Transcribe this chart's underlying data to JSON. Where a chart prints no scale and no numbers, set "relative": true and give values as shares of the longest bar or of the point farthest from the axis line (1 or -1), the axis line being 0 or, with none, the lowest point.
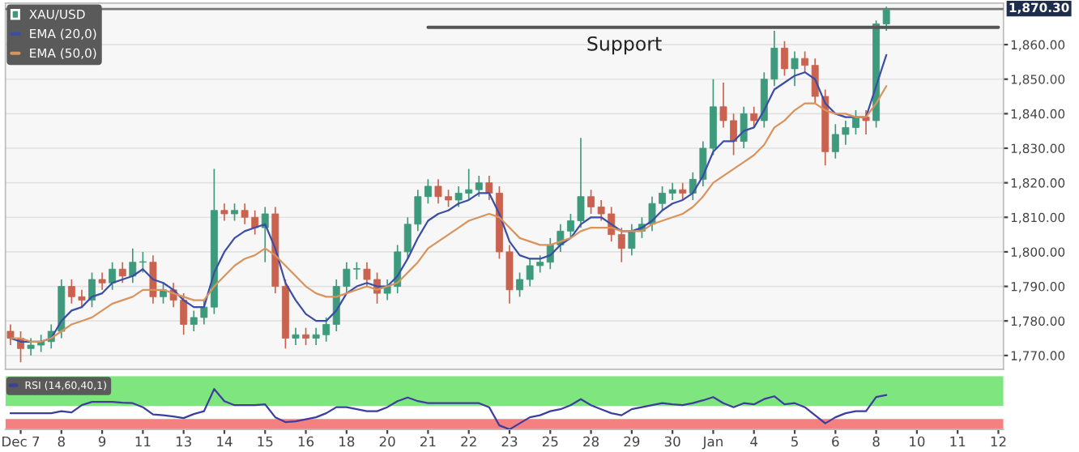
{
  "chart_data": [
    {
      "type": "candlestick",
      "legend": "top left",
      "grid": "y",
      "tick_labels": "y",
      "categories": [
        null,
        null,
        null,
        null,
        null,
        null,
        null,
        null,
        null,
        null,
        null,
        null,
        null,
        null,
        null,
        null,
        null,
        null,
        null,
        null,
        null,
        null,
        null,
        null,
        null,
        null,
        null,
        null,
        null,
        null,
        null,
        null,
        null,
        null,
        null,
        null,
        null,
        null,
        null,
        null,
        null,
        null,
        null,
        null,
        null,
        null,
        null,
        null,
        null,
        null,
        null,
        null,
        null,
        null,
        null,
        null,
        null,
        null,
        null,
        null,
        null,
        null,
        null,
        null,
        null,
        null,
        null,
        null,
        null,
        null,
        null,
        null,
        null,
        null,
        null,
        null,
        null,
        null,
        null,
        null,
        null,
        null,
        null,
        null,
        null,
        null,
        null,
        null,
        null,
        null,
        null,
        null,
        null,
        null,
        null,
        null,
        null,
        null
      ],
      "ylim": [
        1766,
        1872
      ],
      "yticks": [
        {
          "value": 1770,
          "label": "1,770.00"
        },
        {
          "value": 1780,
          "label": "1,780.00"
        },
        {
          "value": 1790,
          "label": "1,790.00"
        },
        {
          "value": 1800,
          "label": "1,800.00"
        },
        {
          "value": 1810,
          "label": "1,810.00"
        },
        {
          "value": 1820,
          "label": "1,820.00"
        },
        {
          "value": 1830,
          "label": "1,830.00"
        },
        {
          "value": 1840,
          "label": "1,840.00"
        },
        {
          "value": 1850,
          "label": "1,850.00"
        },
        {
          "value": 1860,
          "label": "1,860.00"
        }
      ],
      "series": [
        {
          "name": "XAU/USD",
          "type": "candlestick",
          "colors": [
            "#c9634f",
            "#c9634f",
            "#3d9a7c",
            "#3d9a7c",
            "#3d9a7c",
            "#3d9a7c",
            "#c9634f",
            "#c9634f",
            "#3d9a7c",
            "#c9634f",
            "#3d9a7c",
            "#c9634f",
            "#3d9a7c",
            "#3d9a7c",
            "#c9634f",
            "#3d9a7c",
            "#c9634f",
            "#c9634f",
            "#3d9a7c",
            "#3d9a7c",
            "#3d9a7c",
            "#c9634f",
            "#3d9a7c",
            "#c9634f",
            "#c9634f",
            "#3d9a7c",
            "#c9634f",
            "#c9634f",
            "#3d9a7c",
            "#c9634f",
            "#3d9a7c",
            "#3d9a7c",
            "#3d9a7c",
            "#3d9a7c",
            "#3d9a7c",
            "#c9634f",
            "#c9634f",
            "#3d9a7c",
            "#3d9a7c",
            "#3d9a7c",
            "#3d9a7c",
            "#3d9a7c",
            "#c9634f",
            "#c9634f",
            "#3d9a7c",
            "#3d9a7c",
            "#3d9a7c",
            "#c9634f",
            "#c9634f",
            "#c9634f",
            "#3d9a7c",
            "#3d9a7c",
            "#3d9a7c",
            "#3d9a7c",
            "#3d9a7c",
            "#3d9a7c",
            "#3d9a7c",
            "#c9634f",
            "#c9634f",
            "#c9634f",
            "#c9634f",
            "#3d9a7c",
            "#3d9a7c",
            "#3d9a7c",
            "#3d9a7c",
            "#3d9a7c",
            "#c9634f",
            "#3d9a7c",
            "#3d9a7c",
            "#3d9a7c",
            "#c9634f",
            "#c9634f",
            "#3d9a7c",
            "#c9634f",
            "#3d9a7c",
            "#3d9a7c",
            "#c9634f",
            "#3d9a7c",
            "#c9634f",
            "#c9634f",
            "#c9634f",
            "#3d9a7c",
            "#3d9a7c",
            "#3d9a7c",
            "#c9634f",
            "#3d9a7c",
            "#3d9a7c",
            null,
            null,
            null,
            null,
            null,
            null,
            null,
            null,
            null,
            null,
            null
          ],
          "ohlc": [
            [
              1777,
              1779,
              1773,
              1775
            ],
            [
              1775,
              1777,
              1768,
              1772
            ],
            [
              1772,
              1775,
              1770,
              1773
            ],
            [
              1773,
              1776,
              1771,
              1774
            ],
            [
              1774,
              1779,
              1772,
              1777
            ],
            [
              1777,
              1792,
              1775,
              1790
            ],
            [
              1790,
              1792,
              1785,
              1787
            ],
            [
              1787,
              1789,
              1784,
              1786
            ],
            [
              1786,
              1794,
              1784,
              1792
            ],
            [
              1792,
              1794,
              1789,
              1791
            ],
            [
              1791,
              1797,
              1789,
              1795
            ],
            [
              1795,
              1797,
              1791,
              1793
            ],
            [
              1793,
              1801,
              1791,
              1797
            ],
            [
              1797,
              1800,
              1794,
              1797
            ],
            [
              1797,
              1799,
              1785,
              1787
            ],
            [
              1787,
              1791,
              1785,
              1789
            ],
            [
              1789,
              1791,
              1784,
              1786
            ],
            [
              1786,
              1788,
              1776,
              1779
            ],
            [
              1779,
              1783,
              1777,
              1781
            ],
            [
              1781,
              1786,
              1779,
              1784
            ],
            [
              1784,
              1824,
              1782,
              1812
            ],
            [
              1812,
              1814,
              1809,
              1811
            ],
            [
              1811,
              1814,
              1809,
              1812
            ],
            [
              1812,
              1814,
              1808,
              1810
            ],
            [
              1810,
              1812,
              1805,
              1807
            ],
            [
              1807,
              1813,
              1797,
              1811
            ],
            [
              1811,
              1813,
              1788,
              1790
            ],
            [
              1790,
              1792,
              1772,
              1775
            ],
            [
              1775,
              1778,
              1773,
              1776
            ],
            [
              1776,
              1778,
              1773,
              1775
            ],
            [
              1775,
              1778,
              1773,
              1776
            ],
            [
              1776,
              1781,
              1774,
              1779
            ],
            [
              1779,
              1792,
              1777,
              1790
            ],
            [
              1790,
              1797,
              1788,
              1795
            ],
            [
              1795,
              1797,
              1792,
              1795
            ],
            [
              1795,
              1797,
              1790,
              1792
            ],
            [
              1792,
              1794,
              1785,
              1788
            ],
            [
              1788,
              1792,
              1786,
              1790
            ],
            [
              1790,
              1802,
              1788,
              1800
            ],
            [
              1800,
              1810,
              1798,
              1808
            ],
            [
              1808,
              1818,
              1806,
              1816
            ],
            [
              1816,
              1821,
              1814,
              1819
            ],
            [
              1819,
              1821,
              1814,
              1816
            ],
            [
              1816,
              1818,
              1813,
              1815
            ],
            [
              1815,
              1819,
              1813,
              1817
            ],
            [
              1817,
              1824,
              1815,
              1818
            ],
            [
              1818,
              1822,
              1816,
              1820
            ],
            [
              1820,
              1822,
              1815,
              1817
            ],
            [
              1817,
              1819,
              1798,
              1800
            ],
            [
              1800,
              1802,
              1785,
              1789
            ],
            [
              1789,
              1794,
              1787,
              1792
            ],
            [
              1792,
              1798,
              1790,
              1796
            ],
            [
              1796,
              1799,
              1794,
              1797
            ],
            [
              1797,
              1804,
              1795,
              1802
            ],
            [
              1802,
              1808,
              1800,
              1806
            ],
            [
              1806,
              1811,
              1804,
              1809
            ],
            [
              1809,
              1833,
              1807,
              1816
            ],
            [
              1816,
              1818,
              1811,
              1813
            ],
            [
              1813,
              1815,
              1809,
              1811
            ],
            [
              1811,
              1813,
              1803,
              1805
            ],
            [
              1805,
              1807,
              1797,
              1801
            ],
            [
              1801,
              1808,
              1799,
              1806
            ],
            [
              1806,
              1810,
              1804,
              1808
            ],
            [
              1808,
              1816,
              1806,
              1814
            ],
            [
              1814,
              1819,
              1812,
              1817
            ],
            [
              1817,
              1820,
              1815,
              1818
            ],
            [
              1818,
              1820,
              1815,
              1817
            ],
            [
              1817,
              1823,
              1815,
              1821
            ],
            [
              1821,
              1832,
              1819,
              1830
            ],
            [
              1830,
              1850,
              1828,
              1842
            ],
            [
              1842,
              1849,
              1836,
              1838
            ],
            [
              1838,
              1840,
              1828,
              1832
            ],
            [
              1832,
              1842,
              1830,
              1840
            ],
            [
              1840,
              1842,
              1836,
              1838
            ],
            [
              1838,
              1852,
              1836,
              1850
            ],
            [
              1850,
              1864,
              1848,
              1859
            ],
            [
              1859,
              1861,
              1851,
              1853
            ],
            [
              1853,
              1858,
              1848,
              1856
            ],
            [
              1856,
              1858,
              1852,
              1854
            ],
            [
              1854,
              1856,
              1843,
              1845
            ],
            [
              1845,
              1847,
              1825,
              1829
            ],
            [
              1829,
              1837,
              1827,
              1834
            ],
            [
              1834,
              1838,
              1831,
              1836
            ],
            [
              1836,
              1841,
              1834,
              1839
            ],
            [
              1839,
              1841,
              1834,
              1838
            ],
            [
              1838,
              1867,
              1836,
              1866
            ],
            [
              1866,
              1871,
              1864,
              1870
            ],
            null,
            null,
            null,
            null,
            null,
            null,
            null,
            null,
            null,
            null,
            null
          ]
        },
        {
          "name": "EMA (20,0)",
          "type": "line",
          "color": "#3b4ea6",
          "values": [
            1775,
            1774,
            1774,
            1774,
            1775,
            1780,
            1783,
            1784,
            1787,
            1788,
            1791,
            1792,
            1793,
            1795,
            1792,
            1791,
            1789,
            1786,
            1784,
            1784,
            1794,
            1800,
            1804,
            1806,
            1807,
            1808,
            1801,
            1791,
            1786,
            1782,
            1780,
            1780,
            1783,
            1788,
            1790,
            1791,
            1790,
            1790,
            1793,
            1798,
            1804,
            1809,
            1811,
            1812,
            1814,
            1815,
            1817,
            1817,
            1811,
            1803,
            1799,
            1798,
            1798,
            1799,
            1802,
            1804,
            1808,
            1810,
            1810,
            1808,
            1806,
            1806,
            1807,
            1809,
            1812,
            1814,
            1815,
            1817,
            1822,
            1829,
            1832,
            1832,
            1835,
            1836,
            1841,
            1847,
            1849,
            1851,
            1852,
            1850,
            1843,
            1840,
            1839,
            1839,
            1839,
            1848,
            1857,
            null,
            null,
            null,
            null,
            null,
            null,
            null,
            null,
            null,
            null,
            null
          ]
        },
        {
          "name": "EMA (50,0)",
          "type": "line",
          "color": "#d9935c",
          "values": [
            1775,
            1775,
            1774,
            1774,
            1775,
            1777,
            1779,
            1780,
            1781,
            1783,
            1785,
            1786,
            1787,
            1789,
            1789,
            1789,
            1788,
            1787,
            1786,
            1786,
            1790,
            1793,
            1796,
            1798,
            1799,
            1801,
            1799,
            1796,
            1793,
            1790,
            1788,
            1787,
            1787,
            1788,
            1789,
            1790,
            1789,
            1790,
            1791,
            1794,
            1797,
            1801,
            1803,
            1805,
            1807,
            1809,
            1810,
            1811,
            1810,
            1807,
            1804,
            1803,
            1802,
            1802,
            1803,
            1804,
            1806,
            1807,
            1807,
            1807,
            1806,
            1806,
            1806,
            1808,
            1809,
            1810,
            1811,
            1813,
            1816,
            1820,
            1822,
            1824,
            1826,
            1828,
            1831,
            1836,
            1838,
            1841,
            1843,
            1843,
            1841,
            1840,
            1840,
            1839,
            1839,
            1843,
            1848,
            null,
            null,
            null,
            null,
            null,
            null,
            null,
            null,
            null,
            null,
            null
          ]
        },
        {
          "type": "line",
          "color": "#555555",
          "values": [
            null,
            null,
            null,
            null,
            null,
            null,
            null,
            null,
            null,
            null,
            null,
            null,
            null,
            null,
            null,
            null,
            null,
            null,
            null,
            null,
            null,
            null,
            null,
            null,
            null,
            null,
            null,
            null,
            null,
            null,
            null,
            null,
            null,
            null,
            null,
            null,
            null,
            null,
            null,
            null,
            null,
            1865,
            1865,
            1865,
            1865,
            1865,
            1865,
            1865,
            1865,
            1865,
            1865,
            1865,
            1865,
            1865,
            1865,
            1865,
            1865,
            1865,
            1865,
            1865,
            1865,
            1865,
            1865,
            1865,
            1865,
            1865,
            1865,
            1865,
            1865,
            1865,
            1865,
            1865,
            1865,
            1865,
            1865,
            1865,
            1865,
            1865,
            1865,
            1865,
            1865,
            1865,
            1865,
            1865,
            1865,
            1865,
            1865,
            1865,
            1865,
            1865,
            1865,
            1865,
            1865,
            1865,
            1865,
            1865,
            1865,
            1865
          ]
        }
      ],
      "ref_lines": [
        {
          "axis": "y",
          "value": 1870.3,
          "color": "#777777"
        }
      ],
      "annotations": [
        "Support",
        "1,870.30"
      ]
    },
    {
      "type": "line",
      "relative": true,
      "legend": "top left",
      "tick_labels": "x",
      "categories": [
        null,
        "Dec 7",
        null,
        null,
        null,
        "8",
        null,
        null,
        null,
        "9",
        null,
        null,
        null,
        "11",
        null,
        null,
        null,
        "13",
        null,
        null,
        null,
        "14",
        null,
        null,
        null,
        "15",
        null,
        null,
        null,
        "16",
        null,
        null,
        null,
        "18",
        null,
        null,
        null,
        "20",
        null,
        null,
        null,
        "21",
        null,
        null,
        null,
        "22",
        null,
        null,
        null,
        "23",
        null,
        null,
        null,
        "25",
        null,
        null,
        null,
        "28",
        null,
        null,
        null,
        "29",
        null,
        null,
        null,
        "30",
        null,
        null,
        null,
        "Jan",
        null,
        null,
        null,
        "4",
        null,
        null,
        null,
        "5",
        null,
        null,
        null,
        "6",
        null,
        null,
        null,
        "8",
        null,
        null,
        null,
        "10",
        null,
        null,
        null,
        "11",
        null,
        null,
        null,
        "12"
      ],
      "series": [
        {
          "name": "RSI (14,60,40,1)",
          "color": "#3d3d9e",
          "values": [
            0.4,
            0.4,
            0.4,
            0.4,
            0.4,
            0.45,
            0.42,
            0.6,
            0.68,
            0.68,
            0.68,
            0.66,
            0.65,
            0.55,
            0.37,
            0.35,
            0.32,
            0.28,
            0.38,
            0.45,
            1.0,
            0.7,
            0.6,
            0.6,
            0.6,
            0.62,
            0.3,
            0.18,
            0.2,
            0.25,
            0.3,
            0.4,
            0.55,
            0.55,
            0.5,
            0.45,
            0.45,
            0.55,
            0.7,
            0.79,
            0.7,
            0.65,
            0.65,
            0.65,
            0.65,
            0.65,
            0.65,
            0.55,
            0.1,
            0.0,
            0.15,
            0.3,
            0.35,
            0.45,
            0.5,
            0.6,
            0.75,
            0.6,
            0.5,
            0.4,
            0.35,
            0.5,
            0.55,
            0.6,
            0.65,
            0.62,
            0.6,
            0.65,
            0.72,
            0.8,
            0.65,
            0.55,
            0.65,
            0.62,
            0.75,
            0.82,
            0.62,
            0.65,
            0.55,
            0.35,
            0.15,
            0.3,
            0.4,
            0.45,
            0.45,
            0.8,
            0.85,
            null,
            null,
            null,
            null,
            null,
            null,
            null,
            null,
            null,
            null,
            null
          ]
        }
      ],
      "bands": [
        {
          "axis": "y",
          "from": 0.58,
          "to": 1.32,
          "color": "#7fe67f"
        },
        {
          "axis": "y",
          "from": 0,
          "to": 0.26,
          "color": "#f58080"
        }
      ]
    }
  ]
}
